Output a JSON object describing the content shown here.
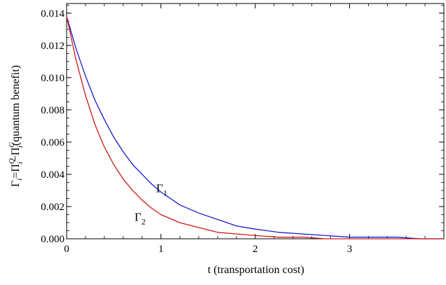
{
  "chart_data": {
    "type": "line",
    "title": "",
    "xlabel": "t (transportation cost)",
    "ylabel": {
      "gamma": "Γ",
      "i": "i",
      "eq_pi": "=Π",
      "Q": "Q",
      "i2": "i",
      "minus_pi": "−Π",
      "C": "C",
      "i3": "i",
      "rest": "(quantum benefit)"
    },
    "xlim": [
      0,
      4
    ],
    "ylim": [
      0,
      0.0146
    ],
    "x_ticks": [
      {
        "value": 0,
        "label": "0"
      },
      {
        "value": 1,
        "label": "1"
      },
      {
        "value": 2,
        "label": "2"
      },
      {
        "value": 3,
        "label": "3"
      }
    ],
    "y_ticks": [
      {
        "value": 0,
        "label": "0.000"
      },
      {
        "value": 0.002,
        "label": "0.002"
      },
      {
        "value": 0.004,
        "label": "0.004"
      },
      {
        "value": 0.006,
        "label": "0.006"
      },
      {
        "value": 0.008,
        "label": "0.008"
      },
      {
        "value": 0.01,
        "label": "0.010"
      },
      {
        "value": 0.012,
        "label": "0.012"
      },
      {
        "value": 0.014,
        "label": "0.014"
      }
    ],
    "grid": false,
    "series": [
      {
        "name": "Γ1",
        "label_main": "Γ",
        "label_sub": "1",
        "color": "#1a1acc",
        "x": [
          0,
          0.1,
          0.2,
          0.3,
          0.4,
          0.5,
          0.6,
          0.7,
          0.8,
          0.9,
          1.0,
          1.2,
          1.4,
          1.6,
          1.8,
          2.0,
          2.25,
          2.5,
          2.75,
          3.0,
          3.25,
          3.5,
          3.75,
          4.0
        ],
        "values": [
          0.0138,
          0.0118,
          0.0101,
          0.0086,
          0.0074,
          0.0063,
          0.0054,
          0.0046,
          0.004,
          0.0034,
          0.0029,
          0.0021,
          0.0016,
          0.0012,
          0.0008,
          0.0006,
          0.0004,
          0.0003,
          0.0002,
          0.0001,
          0.0001,
          0.0001,
          0.0,
          0.0
        ]
      },
      {
        "name": "Γ2",
        "label_main": "Γ",
        "label_sub": "2",
        "color": "#cc1a1a",
        "x": [
          0,
          0.1,
          0.2,
          0.3,
          0.4,
          0.5,
          0.6,
          0.7,
          0.8,
          0.9,
          1.0,
          1.2,
          1.4,
          1.6,
          1.8,
          2.0,
          2.25,
          2.5,
          2.75,
          3.0,
          3.25,
          3.5,
          3.75,
          4.0
        ],
        "values": [
          0.0138,
          0.0111,
          0.0089,
          0.0071,
          0.0057,
          0.0046,
          0.0037,
          0.003,
          0.0024,
          0.0019,
          0.0015,
          0.001,
          0.0007,
          0.0004,
          0.0003,
          0.0002,
          0.0001,
          0.0001,
          0.0,
          0.0,
          0.0,
          0.0,
          0.0,
          0.0
        ]
      }
    ],
    "annotations": [
      {
        "series": 0,
        "x": 0.95,
        "y": 0.0029
      },
      {
        "series": 1,
        "x": 0.72,
        "y": 0.0011
      }
    ]
  }
}
